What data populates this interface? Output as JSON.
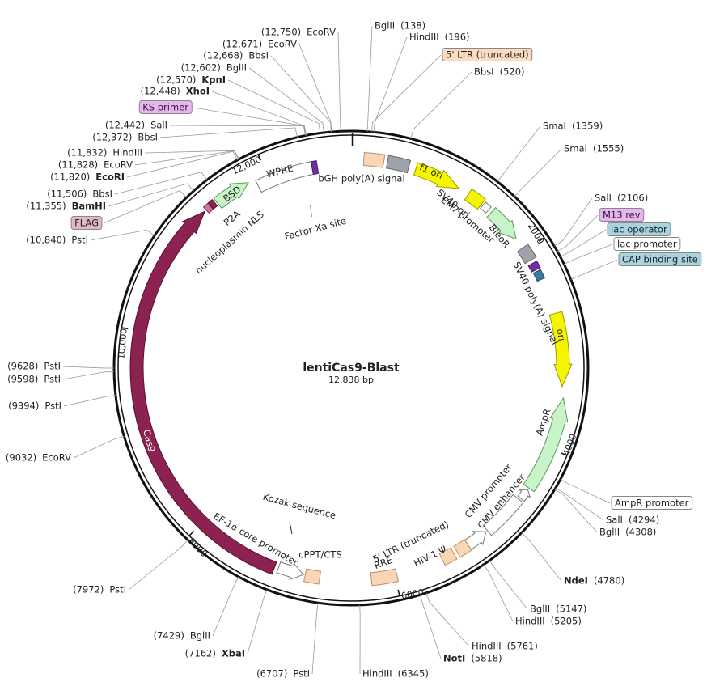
{
  "title": "lentiCas9-Blast",
  "length": "12,838 bp",
  "sites": [
    {
      "name": "EcoRV",
      "position": "(12,750)"
    },
    {
      "name": "EcoRV",
      "position": "(12,671)"
    },
    {
      "name": "BbsI",
      "position": "(12,668)"
    },
    {
      "name": "BglII",
      "position": "(12,602)"
    },
    {
      "name": "KpnI",
      "position": "(12,570)",
      "bold": true
    },
    {
      "name": "XhoI",
      "position": "(12,448)",
      "bold": true
    },
    {
      "name": "KS primer",
      "box": "#e8b4f4"
    },
    {
      "name": "SalI",
      "position": "(12,442)"
    },
    {
      "name": "BbsI",
      "position": "(12,372)"
    },
    {
      "name": "HindIII",
      "position": "(11,832)"
    },
    {
      "name": "EcoRV",
      "position": "(11,828)"
    },
    {
      "name": "EcoRI",
      "position": "(11,820)",
      "bold": true
    },
    {
      "name": "BbsI",
      "position": "(11,506)"
    },
    {
      "name": "BamHI",
      "position": "(11,355)",
      "bold": true
    },
    {
      "name": "FLAG",
      "box": "#e2b8c8"
    },
    {
      "name": "PstI",
      "position": "(10,840)"
    },
    {
      "name": "PstI",
      "position": "(9628)"
    },
    {
      "name": "PstI",
      "position": "(9598)"
    },
    {
      "name": "PstI",
      "position": "(9394)"
    },
    {
      "name": "EcoRV",
      "position": "(9032)"
    },
    {
      "name": "PstI",
      "position": "(7972)"
    },
    {
      "name": "BglII",
      "position": "(7429)"
    },
    {
      "name": "XbaI",
      "position": "(7162)",
      "bold": true
    },
    {
      "name": "PstI",
      "position": "(6707)"
    },
    {
      "name": "HindIII",
      "position": "(6345)"
    },
    {
      "name": "NotI",
      "position": "(5818)",
      "bold": true
    },
    {
      "name": "HindIII",
      "position": "(5761)"
    },
    {
      "name": "HindIII",
      "position": "(5205)"
    },
    {
      "name": "BglII",
      "position": "(5147)"
    },
    {
      "name": "NdeI",
      "position": "(4780)",
      "bold": true
    },
    {
      "name": "BglII",
      "position": "(4308)"
    },
    {
      "name": "SalI",
      "position": "(4294)"
    },
    {
      "name": "AmpR promoter",
      "box": "#ffffff"
    },
    {
      "name": "CAP binding site",
      "box": "#a8d4e0"
    },
    {
      "name": "lac promoter",
      "box": "#ffffff"
    },
    {
      "name": "lac operator",
      "box": "#a8d4e0"
    },
    {
      "name": "M13 rev",
      "box": "#e8b4f4"
    },
    {
      "name": "SalI",
      "position": "(2106)"
    },
    {
      "name": "SmaI",
      "position": "(1555)"
    },
    {
      "name": "SmaI",
      "position": "(1359)"
    },
    {
      "name": "BbsI",
      "position": "(520)"
    },
    {
      "name": "5' LTR (truncated)",
      "box": "#fbdcc0"
    },
    {
      "name": "HindIII",
      "position": "(196)"
    },
    {
      "name": "BglII",
      "position": "(138)"
    }
  ],
  "features": [
    "bGH poly(A) signal",
    "f1 ori",
    "SV40 ori",
    "EM7 promoter",
    "BleoR",
    "SV40 poly(A) signal",
    "ori",
    "AmpR",
    "CMV promoter",
    "CMV enhancer",
    "5' LTR (truncated)",
    "HIV-1 Ψ",
    "RRE",
    "cPPT/CTS",
    "Kozak sequence",
    "EF-1α core promoter",
    "Cas9",
    "nucleoplasmin NLS",
    "P2A",
    "BSD",
    "WPRE",
    "Factor Xa site"
  ],
  "ticks": [
    "2000",
    "4000",
    "6000",
    "8000",
    "10,000",
    "12,000"
  ]
}
